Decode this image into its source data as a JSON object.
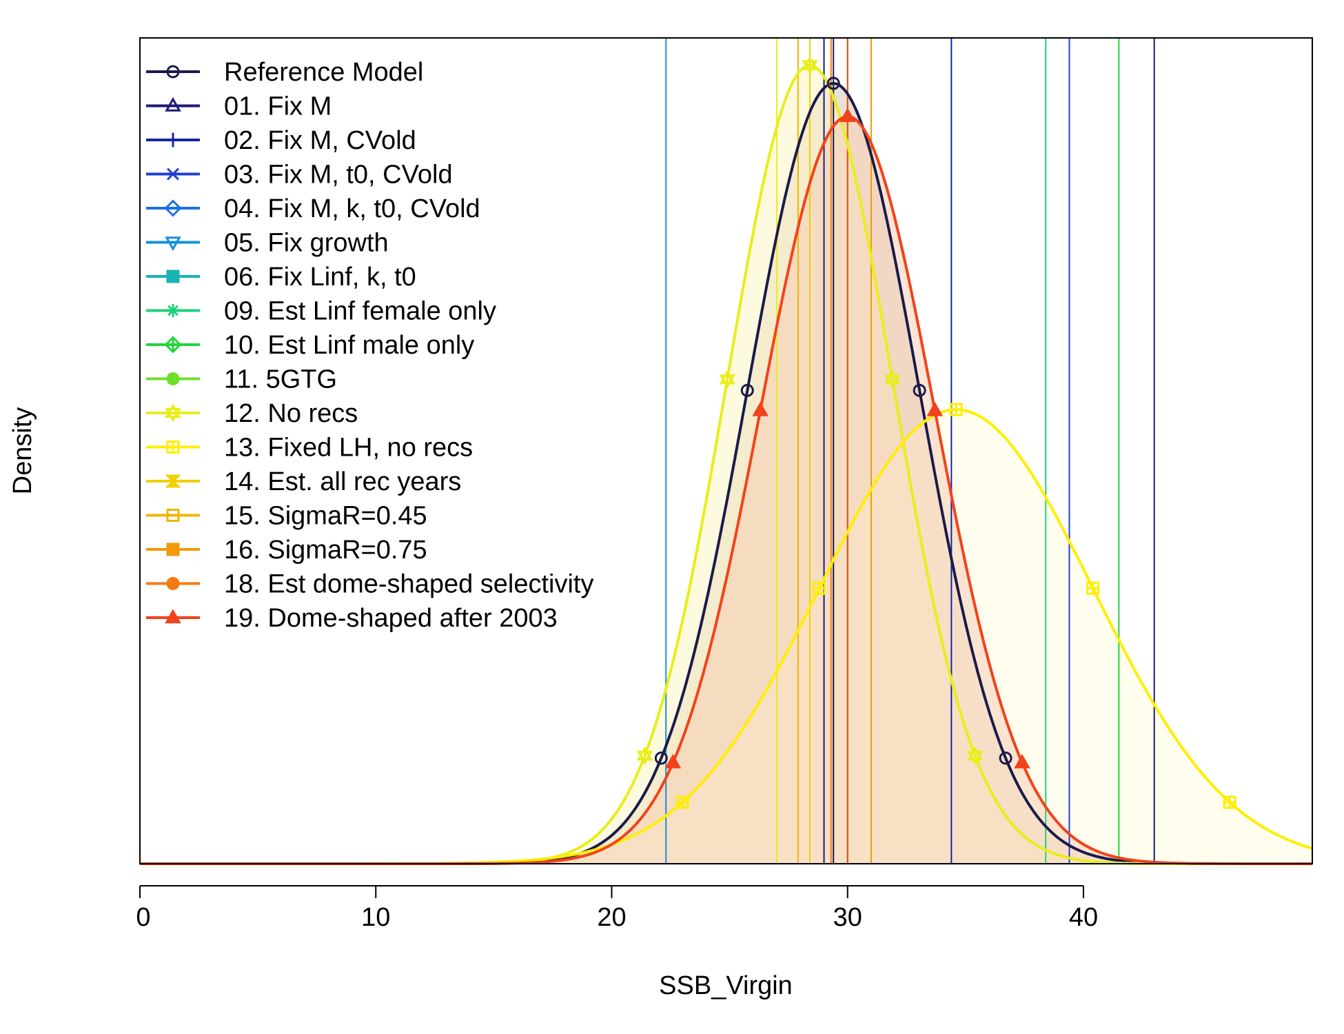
{
  "chart_data": {
    "type": "line",
    "title": "",
    "xlabel": "SSB_Virgin",
    "ylabel": "Density",
    "xlim": [
      0,
      49.7
    ],
    "ylim": [
      0,
      1
    ],
    "x_ticks": [
      0,
      10,
      20,
      30,
      40
    ],
    "x_tick_labels": [
      "0",
      "10",
      "20",
      "30",
      "40"
    ],
    "y_axis_ticks_shown": false,
    "grid": false,
    "legend_position": "top-left",
    "series": [
      {
        "name": "Reference Model",
        "color": "#1b1b4a",
        "marker": "circle-open",
        "mean": 29.4,
        "sd": 3.65,
        "peak": 0.945,
        "shaded": true,
        "fill": "#d9c9b4",
        "vline": 29.4
      },
      {
        "name": "01. Fix M",
        "color": "#1a1a7a",
        "marker": "triangle-open",
        "vlines": [
          29.0,
          43.0
        ]
      },
      {
        "name": "02. Fix M, CVold",
        "color": "#1524a6",
        "marker": "plus",
        "vlines": [
          34.4
        ]
      },
      {
        "name": "03. Fix M, t0, CVold",
        "color": "#1e3fd6",
        "marker": "x",
        "vlines": [
          39.4
        ]
      },
      {
        "name": "04. Fix M, k, t0, CVold",
        "color": "#1f6fe3",
        "marker": "diamond-open",
        "vlines": []
      },
      {
        "name": "05. Fix growth",
        "color": "#1591d8",
        "marker": "triangle-down-open",
        "vlines": [
          22.3
        ]
      },
      {
        "name": "06. Fix Linf, k, t0",
        "color": "#1ab3b3",
        "marker": "square-filled",
        "vlines": []
      },
      {
        "name": "09. Est Linf female only",
        "color": "#1fd17a",
        "marker": "asterisk",
        "vlines": [
          38.4
        ]
      },
      {
        "name": "10. Est Linf male only",
        "color": "#22d43c",
        "marker": "diamond-plus",
        "vlines": [
          41.5
        ]
      },
      {
        "name": "11. 5GTG",
        "color": "#6fe02a",
        "marker": "circle-filled",
        "vlines": [
          30.0
        ]
      },
      {
        "name": "12. No recs",
        "color": "#e8ee1a",
        "marker": "star-open",
        "mean": 28.4,
        "sd": 3.5,
        "peak": 0.967,
        "shaded": true,
        "fill": "#fbf6c4",
        "vline": 27.0
      },
      {
        "name": "13. Fixed LH, no recs",
        "color": "#ffee00",
        "marker": "square-plus",
        "mean": 34.6,
        "sd": 5.8,
        "peak": 0.55,
        "shaded": true,
        "fill": "#fffbe0",
        "vline": 31.0
      },
      {
        "name": "14. Est. all rec years",
        "color": "#f2cf00",
        "marker": "hourglass",
        "vlines": [
          28.4
        ]
      },
      {
        "name": "15. SigmaR=0.45",
        "color": "#f0b400",
        "marker": "square-open",
        "vlines": [
          27.9
        ]
      },
      {
        "name": "16. SigmaR=0.75",
        "color": "#f29a0a",
        "marker": "square-filled",
        "vlines": [
          31.0
        ]
      },
      {
        "name": "18. Est dome-shaped selectivity",
        "color": "#f57a14",
        "marker": "circle-filled",
        "vlines": [
          29.3
        ]
      },
      {
        "name": "19. Dome-shaped after 2003",
        "color": "#f2421a",
        "marker": "triangle-filled",
        "mean": 30.0,
        "sd": 3.7,
        "peak": 0.905,
        "shaded": true,
        "fill": "#f5cfb6",
        "vline": 30.0
      }
    ]
  }
}
